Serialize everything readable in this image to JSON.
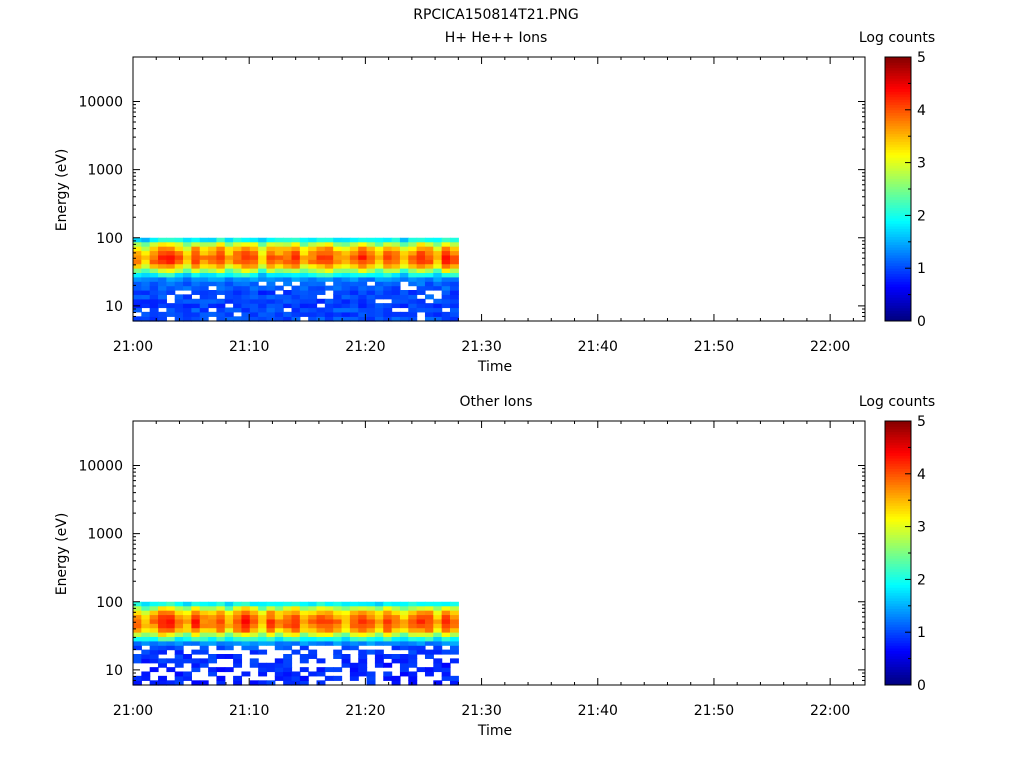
{
  "figure_title": "RPCICA150814T21.PNG",
  "chart_data": [
    {
      "type": "heatmap",
      "title": "H+ He++ Ions",
      "xlabel": "Time",
      "ylabel": "Energy (eV)",
      "y_scale": "log",
      "ylim": [
        6,
        45000
      ],
      "xlim": [
        "21:00",
        "22:03"
      ],
      "x_tick_labels": [
        "21:00",
        "21:10",
        "21:20",
        "21:30",
        "21:40",
        "21:50",
        "22:00"
      ],
      "y_tick_labels": [
        "10",
        "100",
        "1000",
        "10000"
      ],
      "data_time_range": [
        "21:00",
        "21:28"
      ],
      "data_energy_range": [
        6,
        100
      ],
      "colorbar": {
        "label": "Log counts",
        "range": [
          0,
          5
        ],
        "ticks": [
          "0",
          "1",
          "2",
          "3",
          "4",
          "5"
        ],
        "colormap": "jet"
      },
      "energy_bins": [
        6.5,
        7.6,
        8.8,
        10.2,
        11.8,
        13.7,
        15.9,
        18.4,
        21.4,
        24.8,
        28.8,
        33.4,
        38.7,
        44.9,
        52.1,
        60.4,
        70.1,
        81.3,
        94.3
      ],
      "profile": [
        1.0,
        0.95,
        1.0,
        0.9,
        0.95,
        1.0,
        0.9,
        1.05,
        1.1,
        1.3,
        1.8,
        2.5,
        3.2,
        3.6,
        3.7,
        3.5,
        3.2,
        2.6,
        1.8
      ],
      "col_mod": [
        0.1,
        -0.3,
        0.2,
        0.5,
        0.6,
        0.2,
        -0.2,
        0.4,
        0.0,
        0.1,
        0.5,
        -0.1,
        0.2,
        0.5,
        0.4,
        -0.3,
        0.3,
        0.1,
        0.2,
        0.4,
        -0.2,
        0.1,
        0.3,
        0.5,
        0.0,
        -0.1,
        0.2,
        0.5,
        0.3,
        -0.2,
        0.4,
        0.2,
        -0.3,
        0.1,
        0.5,
        0.3,
        -0.2,
        0.6,
        0.3
      ],
      "gap_rate": 0.12
    },
    {
      "type": "heatmap",
      "title": "Other Ions",
      "xlabel": "Time",
      "ylabel": "Energy (eV)",
      "y_scale": "log",
      "ylim": [
        6,
        45000
      ],
      "xlim": [
        "21:00",
        "22:03"
      ],
      "x_tick_labels": [
        "21:00",
        "21:10",
        "21:20",
        "21:30",
        "21:40",
        "21:50",
        "22:00"
      ],
      "y_tick_labels": [
        "10",
        "100",
        "1000",
        "10000"
      ],
      "data_time_range": [
        "21:00",
        "21:28"
      ],
      "data_energy_range": [
        6,
        100
      ],
      "colorbar": {
        "label": "Log counts",
        "range": [
          0,
          5
        ],
        "ticks": [
          "0",
          "1",
          "2",
          "3",
          "4",
          "5"
        ],
        "colormap": "jet"
      },
      "energy_bins": [
        6.5,
        7.6,
        8.8,
        10.2,
        11.8,
        13.7,
        15.9,
        18.4,
        21.4,
        24.8,
        28.8,
        33.4,
        38.7,
        44.9,
        52.1,
        60.4,
        70.1,
        81.3,
        94.3
      ],
      "profile": [
        0.8,
        0.8,
        0.8,
        0.8,
        0.8,
        0.85,
        0.85,
        0.9,
        1.0,
        1.3,
        1.9,
        2.6,
        3.3,
        3.6,
        3.7,
        3.5,
        3.2,
        2.6,
        1.8
      ],
      "col_mod": [
        0.2,
        -0.2,
        0.1,
        0.6,
        0.5,
        0.1,
        -0.1,
        0.5,
        0.1,
        0.0,
        0.4,
        -0.2,
        0.3,
        0.6,
        0.3,
        -0.2,
        0.4,
        0.0,
        0.3,
        0.5,
        -0.1,
        0.2,
        0.4,
        0.4,
        0.1,
        -0.2,
        0.3,
        0.4,
        0.2,
        -0.1,
        0.5,
        0.1,
        -0.2,
        0.2,
        0.4,
        0.4,
        -0.1,
        0.5,
        0.2
      ],
      "gap_rate": 0.45
    }
  ]
}
